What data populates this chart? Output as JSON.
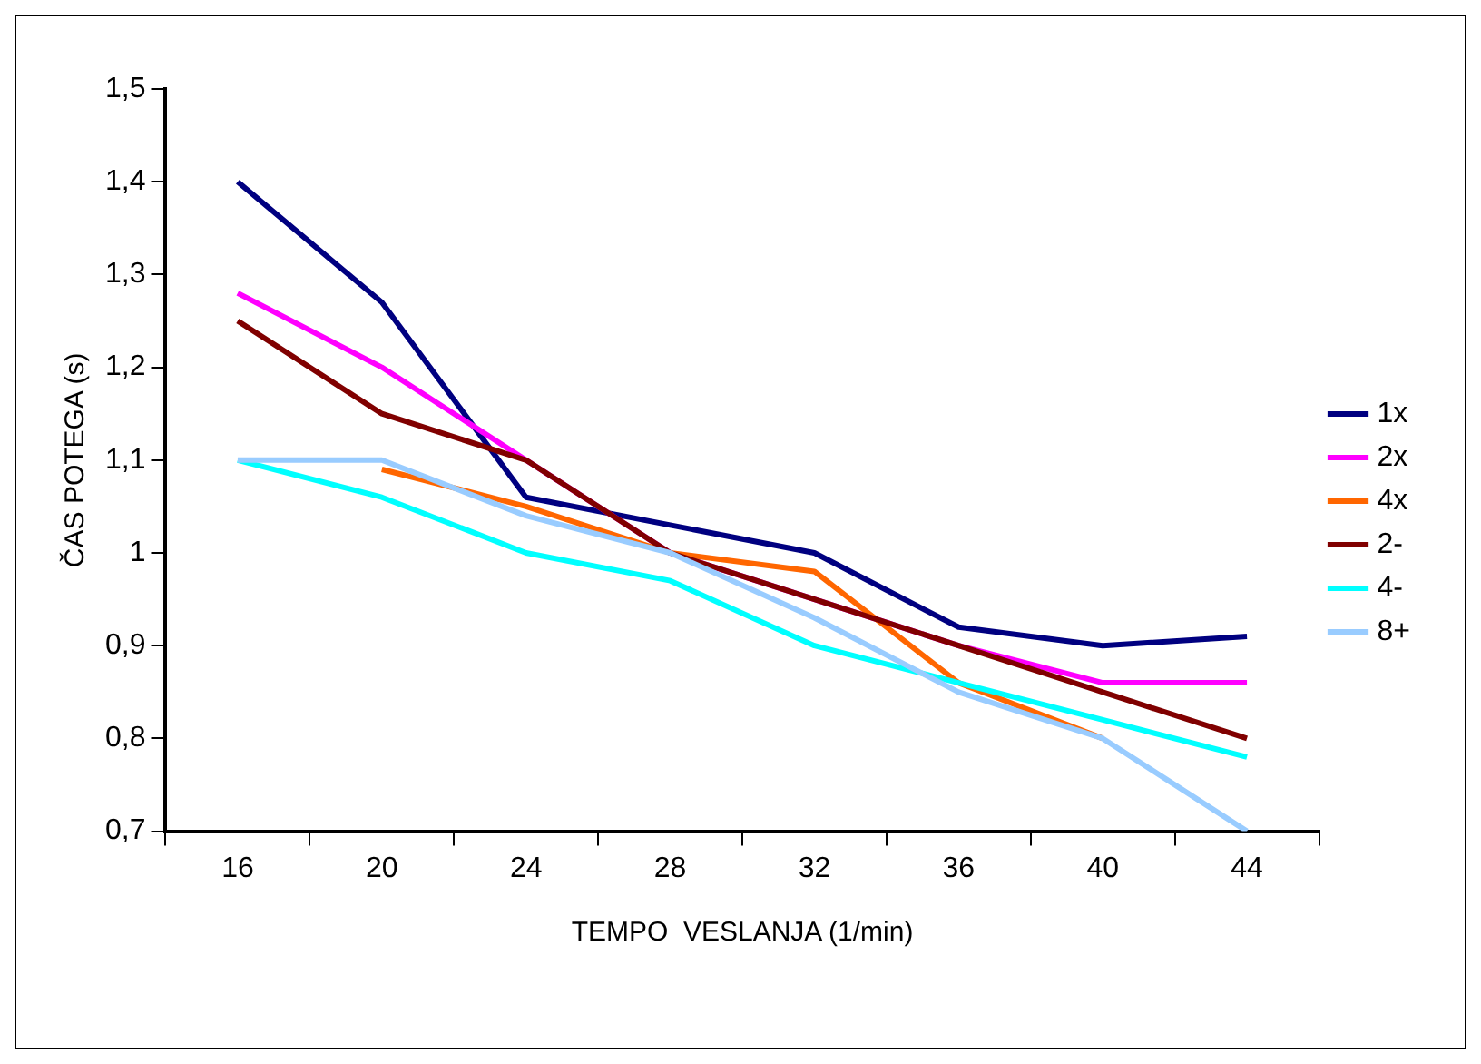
{
  "chart_data": {
    "type": "line",
    "xlabel": "TEMPO  VESLANJA (1/min)",
    "ylabel": "ČAS POTEGA (s)",
    "categories": [
      "16",
      "20",
      "24",
      "28",
      "32",
      "36",
      "40",
      "44"
    ],
    "series": [
      {
        "name": "1x",
        "color": "#000080",
        "values": [
          1.4,
          1.27,
          1.06,
          1.03,
          1.0,
          0.92,
          0.9,
          0.91
        ]
      },
      {
        "name": "2x",
        "color": "#ff00ff",
        "values": [
          1.28,
          1.2,
          1.1,
          1.0,
          0.95,
          0.9,
          0.86,
          0.86
        ]
      },
      {
        "name": "4x",
        "color": "#ff6600",
        "values": [
          null,
          1.09,
          1.05,
          1.0,
          0.98,
          0.86,
          0.8,
          null
        ]
      },
      {
        "name": "2-",
        "color": "#800000",
        "values": [
          1.25,
          1.15,
          1.1,
          1.0,
          0.95,
          0.9,
          0.85,
          0.8
        ]
      },
      {
        "name": "4-",
        "color": "#00ffff",
        "values": [
          1.1,
          1.06,
          1.0,
          0.97,
          0.9,
          0.86,
          0.82,
          0.78
        ]
      },
      {
        "name": "8+",
        "color": "#99ccff",
        "values": [
          1.1,
          1.1,
          1.04,
          1.0,
          0.93,
          0.85,
          0.8,
          0.7
        ]
      }
    ],
    "ylim": [
      0.7,
      1.5
    ],
    "yticks": [
      {
        "value": 0.7,
        "label": "0,7"
      },
      {
        "value": 0.8,
        "label": "0,8"
      },
      {
        "value": 0.9,
        "label": "0,9"
      },
      1,
      {
        "value": 1.1,
        "label": "1,1"
      },
      {
        "value": 1.2,
        "label": "1,2"
      },
      {
        "value": 1.3,
        "label": "1,3"
      },
      {
        "value": 1.4,
        "label": "1,4"
      },
      {
        "value": 1.5,
        "label": "1,5"
      }
    ],
    "grid": false,
    "legend": "right",
    "marker": "none",
    "line_style": "solid"
  }
}
